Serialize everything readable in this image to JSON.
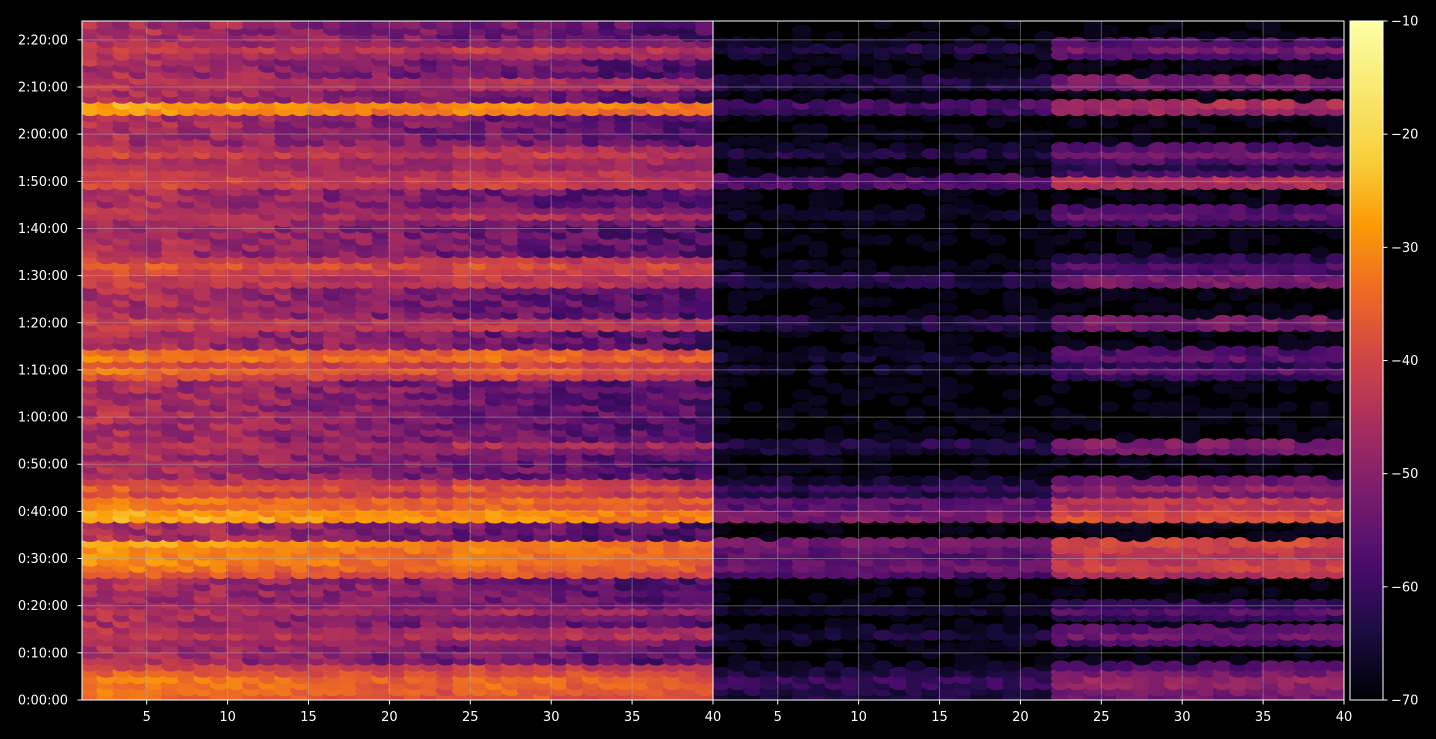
{
  "chart_data": {
    "type": "heatmap",
    "title": "",
    "xlabel": "",
    "ylabel": "",
    "panels": [
      {
        "name": "",
        "xlim": [
          1,
          40
        ],
        "xticks": [
          "5",
          "10",
          "15",
          "20",
          "25",
          "30",
          "35",
          "40"
        ],
        "xtick_values": [
          5,
          10,
          15,
          20,
          25,
          30,
          35,
          40
        ]
      },
      {
        "name": "",
        "xlim": [
          1,
          40
        ],
        "xticks": [
          "5",
          "10",
          "15",
          "20",
          "25",
          "30",
          "35",
          "40"
        ],
        "xtick_values": [
          5,
          10,
          15,
          20,
          25,
          30,
          35,
          40
        ]
      }
    ],
    "ylim_seconds": [
      0,
      8640
    ],
    "yticks": [
      "0:00:00",
      "0:10:00",
      "0:20:00",
      "0:30:00",
      "0:40:00",
      "0:50:00",
      "1:00:00",
      "1:10:00",
      "1:20:00",
      "1:30:00",
      "1:40:00",
      "1:50:00",
      "2:00:00",
      "2:10:00",
      "2:20:00"
    ],
    "ytick_values_seconds": [
      0,
      600,
      1200,
      1800,
      2400,
      3000,
      3600,
      4200,
      4800,
      5400,
      6000,
      6600,
      7200,
      7800,
      8400
    ],
    "grid": true,
    "colormap": "inferno",
    "colorbar": {
      "vmin": -70,
      "vmax": -10,
      "ticks": [
        "−10",
        "−20",
        "−30",
        "−40",
        "−50",
        "−60",
        "−70"
      ],
      "tick_values": [
        -10,
        -20,
        -30,
        -40,
        -50,
        -60,
        -70
      ]
    },
    "band_times_minutes": [
      1.5,
      4,
      6,
      14,
      19,
      28,
      30,
      33,
      39,
      42,
      45,
      54,
      70,
      73,
      80,
      89,
      92,
      103,
      110,
      112,
      116,
      126,
      131,
      138
    ],
    "band_levels_left_panel": [
      -30,
      -28,
      -34,
      -40,
      -44,
      -30,
      -26,
      -24,
      -22,
      -28,
      -34,
      -42,
      -32,
      -28,
      -38,
      -38,
      -34,
      -42,
      -36,
      -40,
      -38,
      -24,
      -40,
      -40
    ],
    "band_levels_right_panel": [
      -50,
      -46,
      -52,
      -52,
      -56,
      -40,
      -40,
      -38,
      -36,
      -40,
      -48,
      -50,
      -56,
      -54,
      -50,
      -50,
      -56,
      -54,
      -42,
      -58,
      -52,
      -44,
      -50,
      -52
    ]
  },
  "colors": {
    "background": "#000000",
    "axes_edge": "#ffffff",
    "grid": "#b0b0b0",
    "tick_text": "#ffffff"
  }
}
